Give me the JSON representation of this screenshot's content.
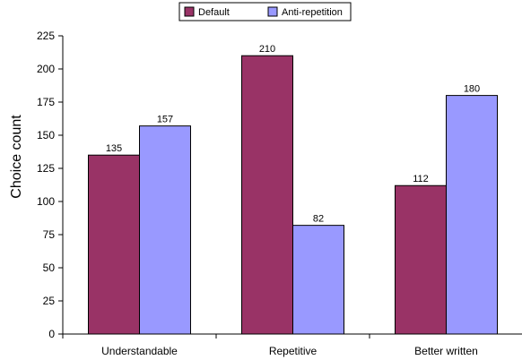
{
  "chart_data": {
    "type": "bar",
    "title": "",
    "xlabel": "",
    "ylabel": "Choice count",
    "categories": [
      "Understandable",
      "Repetitive",
      "Better written"
    ],
    "series": [
      {
        "name": "Default",
        "values": [
          135,
          210,
          112
        ],
        "color": "#993366"
      },
      {
        "name": "Anti-repetition",
        "values": [
          157,
          82,
          180
        ],
        "color": "#9999ff"
      }
    ],
    "ylim": [
      0,
      225
    ],
    "yticks": [
      0,
      25,
      50,
      75,
      100,
      125,
      150,
      175,
      200,
      225
    ],
    "grid": false,
    "legend_position": "top-center"
  }
}
